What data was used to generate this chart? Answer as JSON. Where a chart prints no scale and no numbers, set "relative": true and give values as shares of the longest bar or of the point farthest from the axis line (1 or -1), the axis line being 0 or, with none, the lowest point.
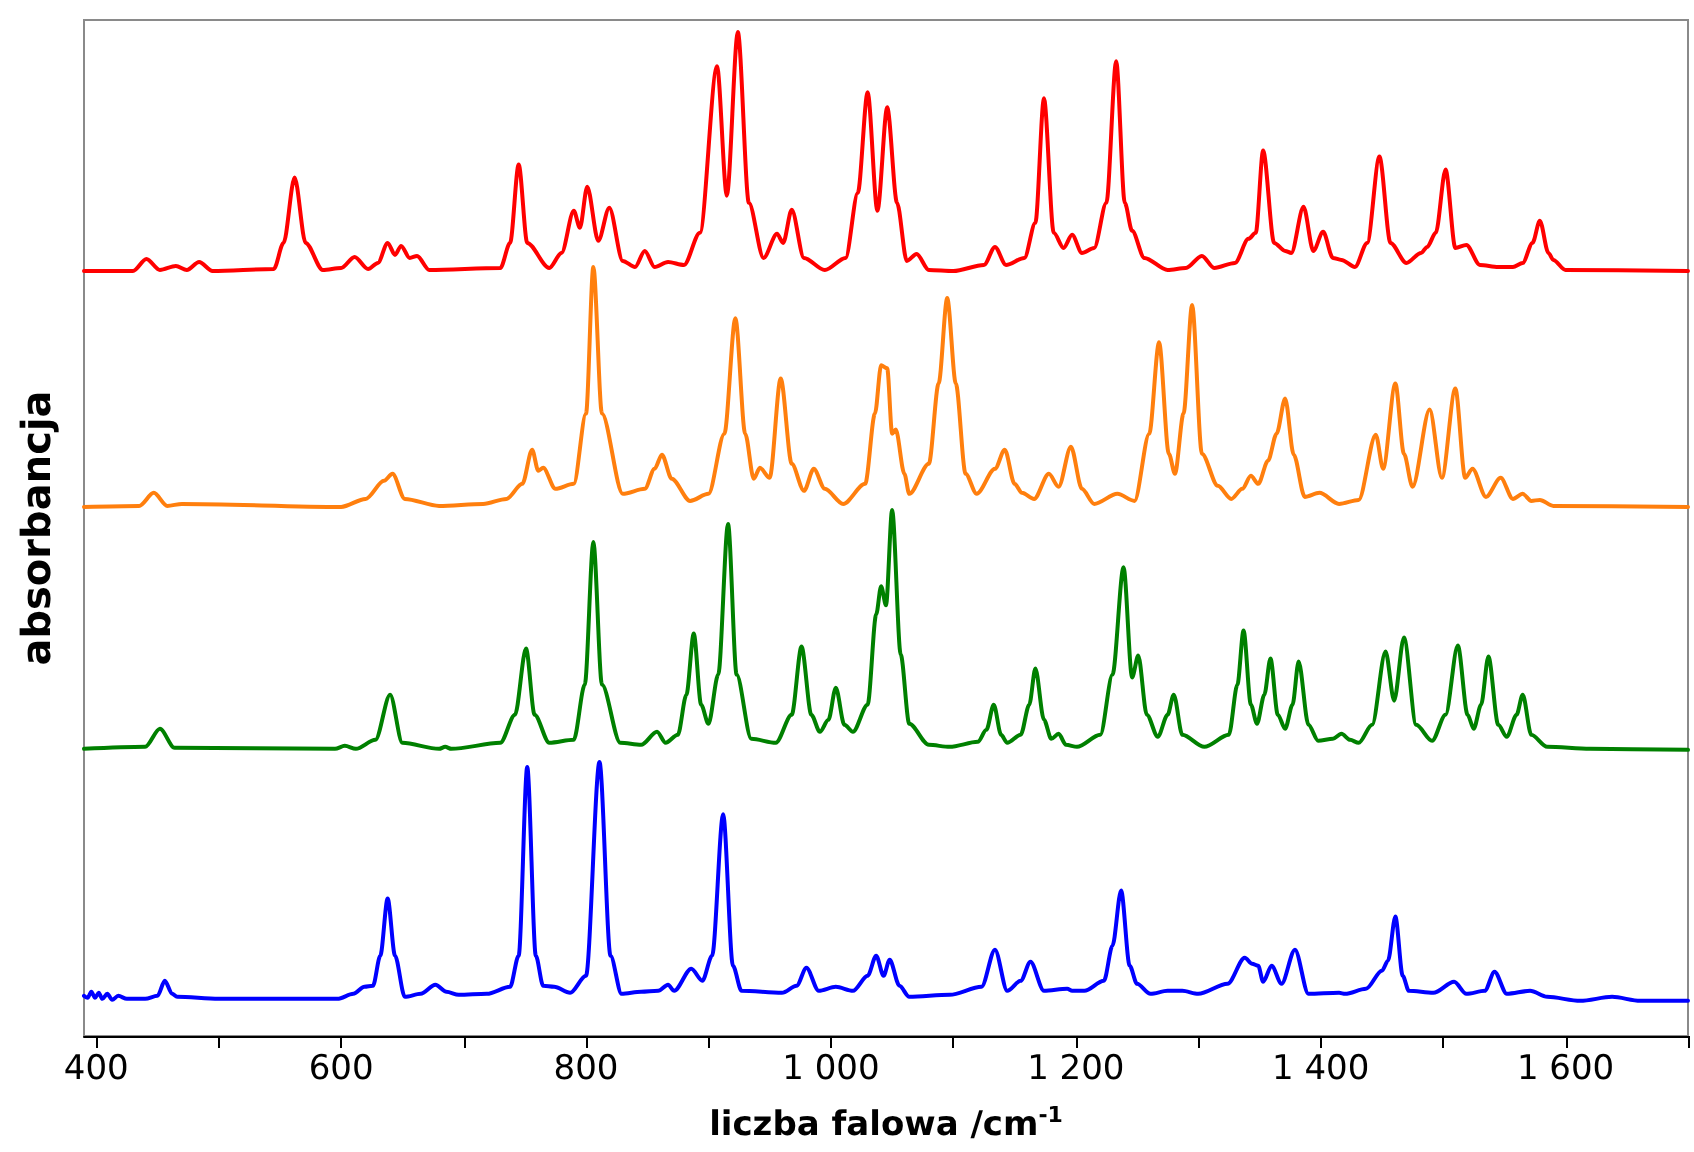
{
  "chart_data": {
    "type": "line",
    "relative": true,
    "xlabel": "liczba falowa /cm$^{-1}$",
    "ylabel": "absorbancja",
    "xlim": [
      390,
      1700
    ],
    "xticks": [
      400,
      {
        "value": 500,
        "label": null
      },
      600,
      {
        "value": 700,
        "label": null
      },
      800,
      {
        "value": 900,
        "label": null
      },
      {
        "value": 1000,
        "label": "1 000"
      },
      {
        "value": 1100,
        "label": null
      },
      {
        "value": 1200,
        "label": "1 200"
      },
      {
        "value": 1300,
        "label": null
      },
      {
        "value": 1400,
        "label": "1 400"
      },
      {
        "value": 1500,
        "label": null
      },
      {
        "value": 1600,
        "label": "1 600"
      },
      {
        "value": 1700,
        "label": null
      }
    ],
    "grid": false,
    "marker": "none",
    "line_style": "solid",
    "series": [
      {
        "color": "#0000ff",
        "x": [
          390,
          393,
          396,
          399,
          402,
          405,
          409,
          413,
          418,
          425,
          440,
          450,
          456,
          462,
          466,
          500,
          597,
          610,
          619,
          626,
          632,
          638,
          644,
          652,
          665,
          677,
          686,
          696,
          719,
          738,
          745,
          752,
          759,
          765,
          774,
          787,
          800,
          811,
          820,
          829,
          845,
          859,
          867,
          872,
          886,
          895,
          903,
          912,
          920,
          927,
          960,
          972,
          980,
          990,
          1004,
          1018,
          1030,
          1037,
          1043,
          1048,
          1056,
          1064,
          1097,
          1123,
          1134,
          1144,
          1155,
          1163,
          1174,
          1193,
          1197,
          1207,
          1223,
          1230,
          1237,
          1244,
          1250,
          1261,
          1275,
          1287,
          1300,
          1324,
          1338,
          1344,
          1349,
          1353,
          1360,
          1368,
          1379,
          1390,
          1415,
          1420,
          1437,
          1450,
          1455,
          1461,
          1467,
          1472,
          1492,
          1509,
          1519,
          1534,
          1542,
          1552,
          1571,
          1585,
          1612,
          1638,
          1661,
          1700
        ],
        "values": [
          0.04,
          0.038,
          0.044,
          0.038,
          0.043,
          0.037,
          0.042,
          0.036,
          0.04,
          0.037,
          0.037,
          0.04,
          0.055,
          0.042,
          0.039,
          0.037,
          0.037,
          0.042,
          0.049,
          0.05,
          0.08,
          0.137,
          0.08,
          0.039,
          0.042,
          0.051,
          0.044,
          0.041,
          0.042,
          0.049,
          0.08,
          0.268,
          0.08,
          0.05,
          0.049,
          0.043,
          0.06,
          0.273,
          0.08,
          0.042,
          0.044,
          0.045,
          0.051,
          0.045,
          0.067,
          0.055,
          0.08,
          0.221,
          0.07,
          0.045,
          0.043,
          0.05,
          0.068,
          0.045,
          0.049,
          0.045,
          0.06,
          0.08,
          0.06,
          0.076,
          0.05,
          0.039,
          0.041,
          0.049,
          0.086,
          0.045,
          0.055,
          0.074,
          0.045,
          0.047,
          0.045,
          0.045,
          0.055,
          0.09,
          0.145,
          0.07,
          0.052,
          0.042,
          0.045,
          0.045,
          0.042,
          0.052,
          0.078,
          0.072,
          0.07,
          0.054,
          0.07,
          0.052,
          0.086,
          0.042,
          0.043,
          0.042,
          0.047,
          0.065,
          0.075,
          0.119,
          0.06,
          0.045,
          0.043,
          0.054,
          0.042,
          0.045,
          0.064,
          0.042,
          0.045,
          0.039,
          0.035,
          0.039,
          0.035,
          0.035
        ]
      },
      {
        "color": "#008000",
        "x": [
          390,
          440,
          452,
          464,
          595,
          603,
          612,
          628,
          640,
          650,
          680,
          685,
          690,
          730,
          742,
          751,
          758,
          770,
          790,
          799,
          806,
          813,
          828,
          845,
          858,
          865,
          875,
          882,
          888,
          894,
          900,
          908,
          916,
          923,
          935,
          955,
          968,
          976,
          984,
          991,
          998,
          1004,
          1011,
          1018,
          1030,
          1037,
          1041,
          1045,
          1050,
          1057,
          1064,
          1080,
          1097,
          1120,
          1127,
          1133,
          1139,
          1144,
          1155,
          1162,
          1167,
          1174,
          1180,
          1186,
          1192,
          1201,
          1220,
          1230,
          1239,
          1246,
          1251,
          1258,
          1267,
          1275,
          1280,
          1287,
          1305,
          1325,
          1332,
          1337,
          1343,
          1348,
          1354,
          1359,
          1365,
          1371,
          1377,
          1382,
          1390,
          1398,
          1410,
          1417,
          1424,
          1431,
          1442,
          1453,
          1460,
          1468,
          1478,
          1491,
          1502,
          1512,
          1520,
          1525,
          1531,
          1537,
          1545,
          1552,
          1560,
          1565,
          1572,
          1585,
          1620,
          1700
        ],
        "values": [
          0.286,
          0.288,
          0.306,
          0.287,
          0.286,
          0.289,
          0.286,
          0.295,
          0.34,
          0.292,
          0.286,
          0.288,
          0.286,
          0.292,
          0.32,
          0.386,
          0.32,
          0.292,
          0.295,
          0.35,
          0.492,
          0.35,
          0.292,
          0.29,
          0.303,
          0.292,
          0.3,
          0.34,
          0.401,
          0.33,
          0.311,
          0.36,
          0.51,
          0.36,
          0.296,
          0.292,
          0.32,
          0.388,
          0.32,
          0.303,
          0.315,
          0.347,
          0.31,
          0.303,
          0.33,
          0.42,
          0.448,
          0.429,
          0.524,
          0.38,
          0.311,
          0.29,
          0.288,
          0.293,
          0.305,
          0.33,
          0.3,
          0.292,
          0.3,
          0.33,
          0.366,
          0.315,
          0.296,
          0.301,
          0.29,
          0.288,
          0.3,
          0.36,
          0.467,
          0.357,
          0.379,
          0.32,
          0.298,
          0.32,
          0.34,
          0.3,
          0.288,
          0.3,
          0.35,
          0.404,
          0.33,
          0.311,
          0.34,
          0.376,
          0.32,
          0.306,
          0.33,
          0.373,
          0.31,
          0.294,
          0.296,
          0.301,
          0.295,
          0.292,
          0.31,
          0.383,
          0.334,
          0.397,
          0.31,
          0.294,
          0.32,
          0.389,
          0.32,
          0.306,
          0.33,
          0.378,
          0.31,
          0.298,
          0.32,
          0.34,
          0.3,
          0.288,
          0.286,
          0.285
        ]
      },
      {
        "color": "#ff7f0e",
        "x": [
          390,
          435,
          447,
          458,
          470,
          600,
          620,
          635,
          642,
          652,
          680,
          716,
          735,
          748,
          756,
          761,
          765,
          775,
          790,
          800,
          806,
          813,
          830,
          848,
          856,
          862,
          870,
          885,
          900,
          913,
          922,
          930,
          937,
          942,
          950,
          959,
          968,
          978,
          986,
          995,
          1010,
          1028,
          1036,
          1041,
          1046,
          1050,
          1053,
          1060,
          1064,
          1080,
          1088,
          1095,
          1102,
          1110,
          1119,
          1134,
          1142,
          1150,
          1156,
          1166,
          1178,
          1186,
          1196,
          1205,
          1215,
          1234,
          1248,
          1260,
          1268,
          1276,
          1281,
          1288,
          1295,
          1303,
          1316,
          1327,
          1336,
          1343,
          1349,
          1357,
          1364,
          1371,
          1378,
          1387,
          1399,
          1415,
          1431,
          1445,
          1451,
          1461,
          1468,
          1475,
          1489,
          1499,
          1510,
          1518,
          1524,
          1535,
          1547,
          1557,
          1565,
          1572,
          1579,
          1590,
          1700
        ],
        "values": [
          0.527,
          0.528,
          0.541,
          0.528,
          0.53,
          0.527,
          0.535,
          0.553,
          0.56,
          0.535,
          0.528,
          0.53,
          0.535,
          0.55,
          0.584,
          0.563,
          0.566,
          0.545,
          0.55,
          0.62,
          0.766,
          0.62,
          0.54,
          0.545,
          0.565,
          0.579,
          0.555,
          0.533,
          0.54,
          0.6,
          0.715,
          0.6,
          0.555,
          0.566,
          0.556,
          0.655,
          0.57,
          0.543,
          0.565,
          0.545,
          0.53,
          0.55,
          0.62,
          0.668,
          0.665,
          0.6,
          0.604,
          0.56,
          0.54,
          0.57,
          0.65,
          0.735,
          0.65,
          0.56,
          0.54,
          0.565,
          0.584,
          0.55,
          0.541,
          0.535,
          0.56,
          0.547,
          0.587,
          0.545,
          0.53,
          0.54,
          0.533,
          0.6,
          0.691,
          0.58,
          0.56,
          0.62,
          0.728,
          0.58,
          0.548,
          0.535,
          0.545,
          0.558,
          0.55,
          0.573,
          0.6,
          0.635,
          0.579,
          0.537,
          0.541,
          0.53,
          0.534,
          0.599,
          0.565,
          0.65,
          0.58,
          0.547,
          0.624,
          0.556,
          0.645,
          0.556,
          0.565,
          0.537,
          0.556,
          0.535,
          0.54,
          0.533,
          0.534,
          0.528,
          0.527
        ]
      },
      {
        "color": "#ff0000",
        "x": [
          390,
          430,
          441,
          452,
          465,
          474,
          484,
          495,
          545,
          553,
          562,
          571,
          585,
          600,
          611,
          622,
          630,
          638,
          644,
          649,
          656,
          662,
          672,
          730,
          738,
          745,
          752,
          770,
          780,
          790,
          795,
          801,
          810,
          819,
          830,
          840,
          848,
          856,
          867,
          880,
          893,
          907,
          915,
          924,
          933,
          945,
          956,
          961,
          968,
          978,
          995,
          1012,
          1022,
          1030,
          1038,
          1046,
          1054,
          1062,
          1070,
          1080,
          1100,
          1125,
          1134,
          1143,
          1158,
          1167,
          1174,
          1182,
          1190,
          1197,
          1205,
          1215,
          1225,
          1233,
          1240,
          1246,
          1256,
          1275,
          1290,
          1303,
          1313,
          1330,
          1341,
          1347,
          1353,
          1362,
          1371,
          1376,
          1386,
          1394,
          1402,
          1410,
          1417,
          1428,
          1438,
          1448,
          1457,
          1470,
          1482,
          1487,
          1494,
          1502,
          1510,
          1519,
          1530,
          1545,
          1557,
          1565,
          1573,
          1579,
          1586,
          1590,
          1600,
          1700
        ],
        "values": [
          0.762,
          0.762,
          0.774,
          0.763,
          0.767,
          0.763,
          0.771,
          0.762,
          0.764,
          0.79,
          0.855,
          0.79,
          0.763,
          0.765,
          0.776,
          0.764,
          0.77,
          0.79,
          0.778,
          0.787,
          0.775,
          0.777,
          0.763,
          0.765,
          0.79,
          0.868,
          0.79,
          0.765,
          0.78,
          0.822,
          0.805,
          0.846,
          0.792,
          0.825,
          0.772,
          0.766,
          0.782,
          0.766,
          0.771,
          0.768,
          0.8,
          0.966,
          0.837,
          1.0,
          0.83,
          0.775,
          0.799,
          0.79,
          0.823,
          0.775,
          0.763,
          0.775,
          0.84,
          0.94,
          0.822,
          0.925,
          0.83,
          0.772,
          0.779,
          0.763,
          0.762,
          0.768,
          0.786,
          0.768,
          0.775,
          0.81,
          0.934,
          0.8,
          0.785,
          0.798,
          0.78,
          0.785,
          0.83,
          0.971,
          0.83,
          0.802,
          0.775,
          0.763,
          0.765,
          0.777,
          0.765,
          0.77,
          0.794,
          0.8,
          0.882,
          0.79,
          0.782,
          0.78,
          0.826,
          0.782,
          0.801,
          0.775,
          0.773,
          0.766,
          0.79,
          0.876,
          0.79,
          0.77,
          0.78,
          0.786,
          0.8,
          0.863,
          0.785,
          0.788,
          0.768,
          0.766,
          0.766,
          0.77,
          0.79,
          0.812,
          0.78,
          0.773,
          0.763,
          0.762
        ]
      }
    ]
  }
}
